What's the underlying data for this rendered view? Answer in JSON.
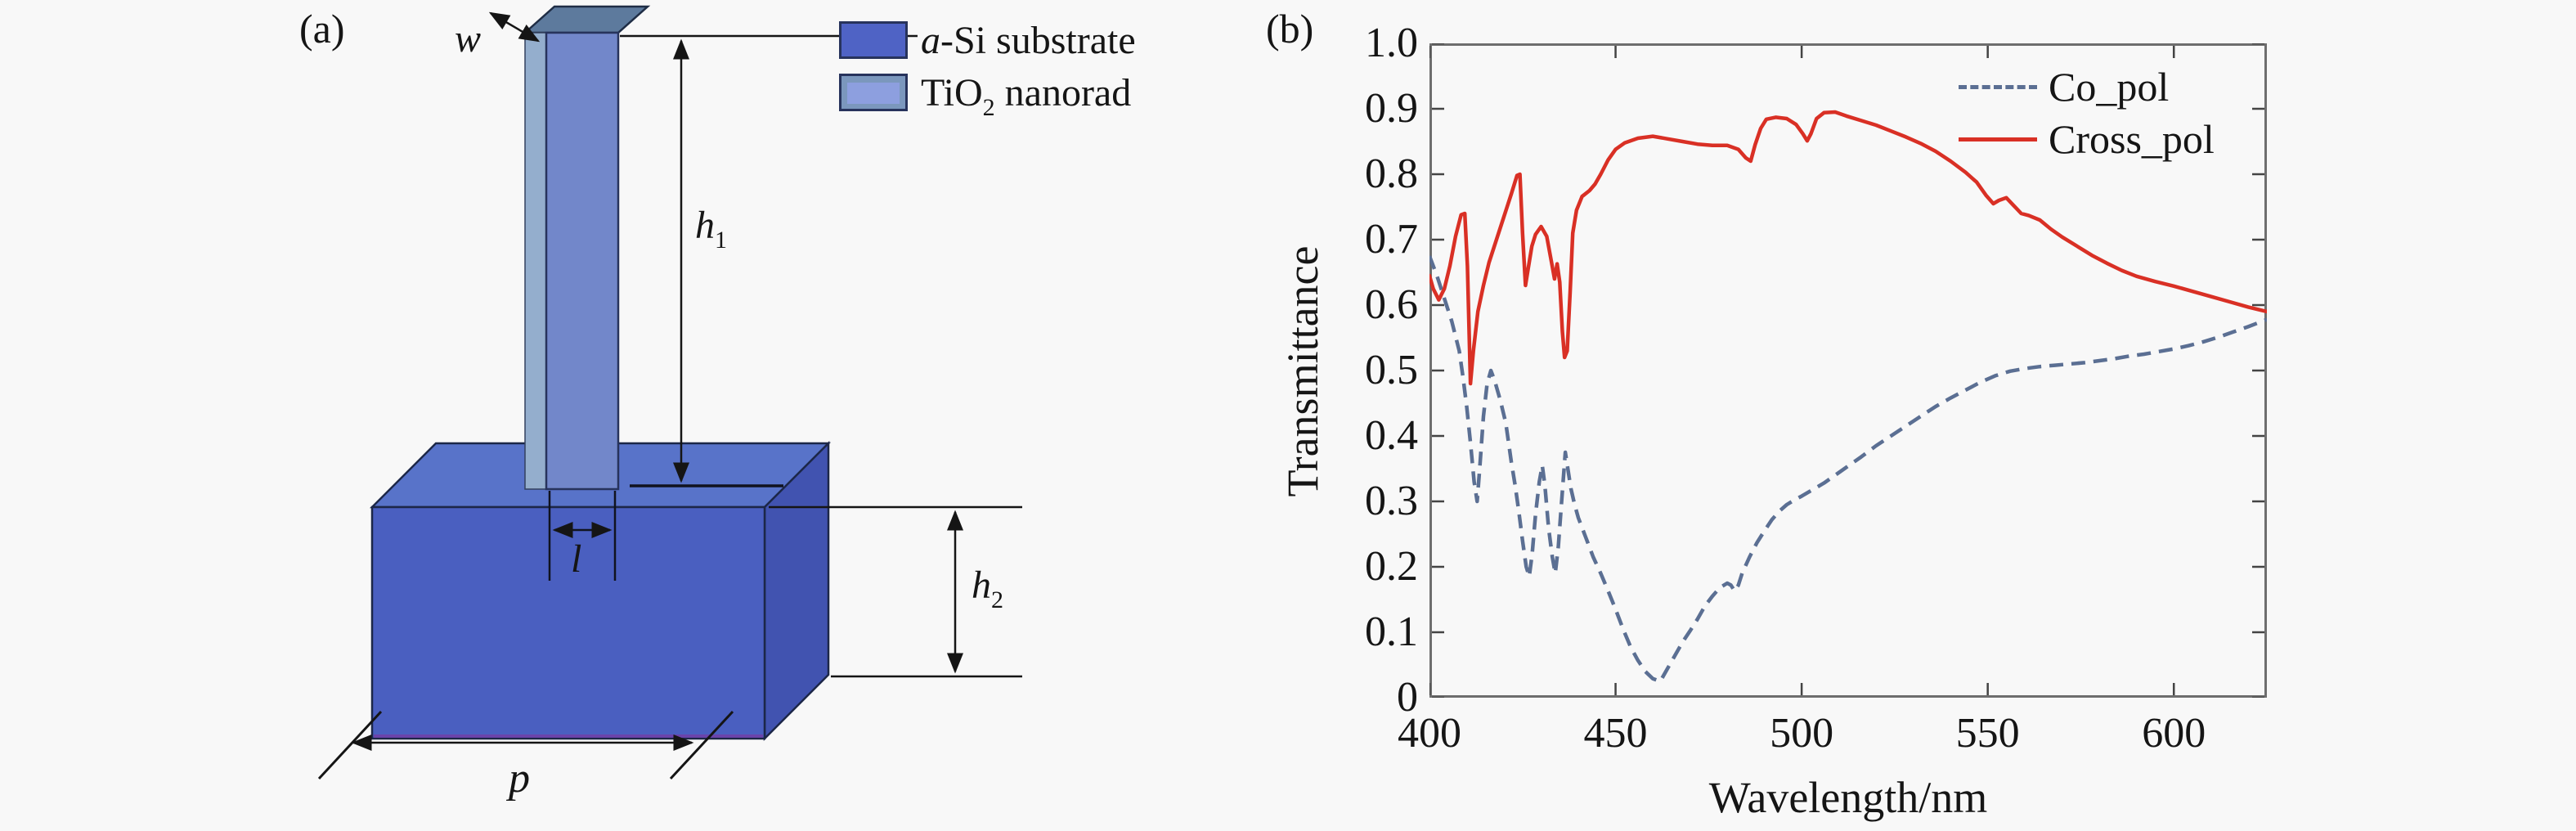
{
  "page": {
    "background": "#f8f8f8",
    "text_color": "#151515"
  },
  "panel_a": {
    "label": "(a)",
    "legend": [
      {
        "name": "substrate-swatch",
        "color": "#4f63c5",
        "label_italic": "a",
        "label_rest": "-Si substrate"
      },
      {
        "name": "nanorod-swatch",
        "color": "#7b97bd",
        "label_main": "TiO",
        "label_sub": "2",
        "label_rest": " nanorad"
      }
    ],
    "dimensions": {
      "w": "w",
      "h_base": "h",
      "h1_sub": "1",
      "h2_sub": "2",
      "l": "l",
      "p": "p"
    },
    "colors": {
      "rod_front": "#7287ca",
      "rod_side": "#94aecd",
      "rod_cap": "#5d7a9d",
      "box_top": "#5873c9",
      "box_front": "#4a5fc0",
      "box_right": "#4153b0",
      "box_bottom_edge": "#7040a8",
      "line_color": "#151515"
    }
  },
  "panel_b": {
    "label": "(b)"
  },
  "chart_data": {
    "type": "line",
    "title": "",
    "xlabel": "Wavelength/nm",
    "ylabel": "Transmittance",
    "xlim": [
      400,
      625
    ],
    "ylim": [
      0,
      1.0
    ],
    "xticks": [
      400,
      450,
      500,
      550,
      600
    ],
    "ytick_labels": [
      "0",
      "0.1",
      "0.2",
      "0.3",
      "0.4",
      "0.5",
      "0.6",
      "0.7",
      "0.8",
      "0.9",
      "1.0"
    ],
    "grid": false,
    "box": true,
    "legend_position": "upper right",
    "frame_color": "#6e6e6e",
    "tick_color": "#444444",
    "series": [
      {
        "name": "Co_pol",
        "style": "dashed",
        "color": "#5b6f93",
        "points": [
          [
            400,
            0.675
          ],
          [
            402,
            0.645
          ],
          [
            404,
            0.61
          ],
          [
            406,
            0.575
          ],
          [
            408,
            0.53
          ],
          [
            409,
            0.49
          ],
          [
            410,
            0.445
          ],
          [
            411,
            0.39
          ],
          [
            412,
            0.33
          ],
          [
            412.8,
            0.3
          ],
          [
            413.5,
            0.35
          ],
          [
            414.5,
            0.43
          ],
          [
            415.5,
            0.48
          ],
          [
            416.5,
            0.5
          ],
          [
            417.5,
            0.485
          ],
          [
            419,
            0.455
          ],
          [
            420.5,
            0.42
          ],
          [
            422,
            0.36
          ],
          [
            423,
            0.325
          ],
          [
            424,
            0.285
          ],
          [
            425,
            0.24
          ],
          [
            426,
            0.2
          ],
          [
            426.8,
            0.185
          ],
          [
            427.6,
            0.22
          ],
          [
            428.5,
            0.28
          ],
          [
            429.5,
            0.33
          ],
          [
            430.3,
            0.355
          ],
          [
            431,
            0.325
          ],
          [
            432,
            0.26
          ],
          [
            433,
            0.215
          ],
          [
            433.8,
            0.19
          ],
          [
            434.6,
            0.23
          ],
          [
            435.5,
            0.3
          ],
          [
            436.5,
            0.375
          ],
          [
            437.3,
            0.345
          ],
          [
            438,
            0.32
          ],
          [
            439,
            0.295
          ],
          [
            440,
            0.275
          ],
          [
            442,
            0.245
          ],
          [
            444,
            0.215
          ],
          [
            446,
            0.19
          ],
          [
            448,
            0.163
          ],
          [
            450,
            0.135
          ],
          [
            452,
            0.105
          ],
          [
            454,
            0.078
          ],
          [
            456,
            0.057
          ],
          [
            458,
            0.04
          ],
          [
            460,
            0.029
          ],
          [
            462,
            0.025
          ],
          [
            464,
            0.045
          ],
          [
            466,
            0.065
          ],
          [
            468,
            0.085
          ],
          [
            470,
            0.102
          ],
          [
            472,
            0.12
          ],
          [
            474,
            0.14
          ],
          [
            476,
            0.155
          ],
          [
            478,
            0.168
          ],
          [
            480,
            0.175
          ],
          [
            481,
            0.172
          ],
          [
            482,
            0.163
          ],
          [
            483,
            0.172
          ],
          [
            484,
            0.19
          ],
          [
            486,
            0.215
          ],
          [
            488,
            0.237
          ],
          [
            490,
            0.255
          ],
          [
            492,
            0.272
          ],
          [
            494,
            0.285
          ],
          [
            496,
            0.295
          ],
          [
            498,
            0.302
          ],
          [
            500,
            0.308
          ],
          [
            503,
            0.318
          ],
          [
            506,
            0.328
          ],
          [
            509,
            0.34
          ],
          [
            512,
            0.352
          ],
          [
            516,
            0.368
          ],
          [
            520,
            0.385
          ],
          [
            524,
            0.4
          ],
          [
            528,
            0.415
          ],
          [
            532,
            0.43
          ],
          [
            536,
            0.445
          ],
          [
            540,
            0.458
          ],
          [
            544,
            0.47
          ],
          [
            548,
            0.482
          ],
          [
            552,
            0.492
          ],
          [
            556,
            0.499
          ],
          [
            560,
            0.503
          ],
          [
            564,
            0.506
          ],
          [
            568,
            0.508
          ],
          [
            572,
            0.51
          ],
          [
            576,
            0.512
          ],
          [
            580,
            0.515
          ],
          [
            584,
            0.518
          ],
          [
            588,
            0.522
          ],
          [
            592,
            0.525
          ],
          [
            596,
            0.529
          ],
          [
            600,
            0.533
          ],
          [
            604,
            0.538
          ],
          [
            608,
            0.544
          ],
          [
            612,
            0.551
          ],
          [
            616,
            0.559
          ],
          [
            620,
            0.567
          ],
          [
            625,
            0.578
          ]
        ]
      },
      {
        "name": "Cross_pol",
        "style": "solid",
        "color": "#d93025",
        "points": [
          [
            400,
            0.645
          ],
          [
            401,
            0.625
          ],
          [
            402.5,
            0.608
          ],
          [
            404,
            0.625
          ],
          [
            405.5,
            0.66
          ],
          [
            407,
            0.705
          ],
          [
            408.5,
            0.738
          ],
          [
            409.5,
            0.74
          ],
          [
            410.2,
            0.66
          ],
          [
            411,
            0.48
          ],
          [
            411.8,
            0.53
          ],
          [
            413,
            0.59
          ],
          [
            414.5,
            0.63
          ],
          [
            416,
            0.665
          ],
          [
            418,
            0.7
          ],
          [
            420,
            0.735
          ],
          [
            422,
            0.77
          ],
          [
            423.5,
            0.798
          ],
          [
            424.3,
            0.8
          ],
          [
            425,
            0.71
          ],
          [
            425.8,
            0.63
          ],
          [
            426.5,
            0.655
          ],
          [
            427.5,
            0.69
          ],
          [
            428.5,
            0.708
          ],
          [
            430,
            0.72
          ],
          [
            431.5,
            0.705
          ],
          [
            432.8,
            0.665
          ],
          [
            433.6,
            0.64
          ],
          [
            434.3,
            0.663
          ],
          [
            435,
            0.635
          ],
          [
            435.7,
            0.56
          ],
          [
            436.3,
            0.52
          ],
          [
            437,
            0.53
          ],
          [
            437.8,
            0.62
          ],
          [
            438.5,
            0.71
          ],
          [
            439.5,
            0.745
          ],
          [
            441,
            0.766
          ],
          [
            443,
            0.775
          ],
          [
            444.5,
            0.785
          ],
          [
            446,
            0.8
          ],
          [
            448,
            0.822
          ],
          [
            450,
            0.838
          ],
          [
            452.5,
            0.848
          ],
          [
            456,
            0.855
          ],
          [
            460,
            0.858
          ],
          [
            464,
            0.854
          ],
          [
            468,
            0.85
          ],
          [
            472,
            0.846
          ],
          [
            476,
            0.844
          ],
          [
            480,
            0.844
          ],
          [
            483,
            0.838
          ],
          [
            485,
            0.825
          ],
          [
            486.3,
            0.82
          ],
          [
            487.5,
            0.845
          ],
          [
            489,
            0.87
          ],
          [
            490.5,
            0.884
          ],
          [
            493,
            0.887
          ],
          [
            496,
            0.885
          ],
          [
            498.5,
            0.876
          ],
          [
            500.3,
            0.862
          ],
          [
            501.5,
            0.851
          ],
          [
            502.5,
            0.862
          ],
          [
            504,
            0.885
          ],
          [
            506,
            0.894
          ],
          [
            509,
            0.895
          ],
          [
            512,
            0.889
          ],
          [
            516,
            0.882
          ],
          [
            520,
            0.875
          ],
          [
            524,
            0.866
          ],
          [
            528,
            0.857
          ],
          [
            532,
            0.847
          ],
          [
            536,
            0.835
          ],
          [
            540,
            0.82
          ],
          [
            544,
            0.803
          ],
          [
            547,
            0.788
          ],
          [
            549.5,
            0.768
          ],
          [
            551.5,
            0.755
          ],
          [
            553,
            0.76
          ],
          [
            555,
            0.764
          ],
          [
            557,
            0.752
          ],
          [
            559,
            0.74
          ],
          [
            561,
            0.737
          ],
          [
            564,
            0.73
          ],
          [
            567,
            0.716
          ],
          [
            570,
            0.704
          ],
          [
            574,
            0.69
          ],
          [
            578,
            0.676
          ],
          [
            582,
            0.664
          ],
          [
            586,
            0.653
          ],
          [
            590,
            0.644
          ],
          [
            595,
            0.636
          ],
          [
            600,
            0.629
          ],
          [
            605,
            0.621
          ],
          [
            610,
            0.613
          ],
          [
            615,
            0.605
          ],
          [
            620,
            0.597
          ],
          [
            625,
            0.59
          ]
        ]
      }
    ]
  }
}
